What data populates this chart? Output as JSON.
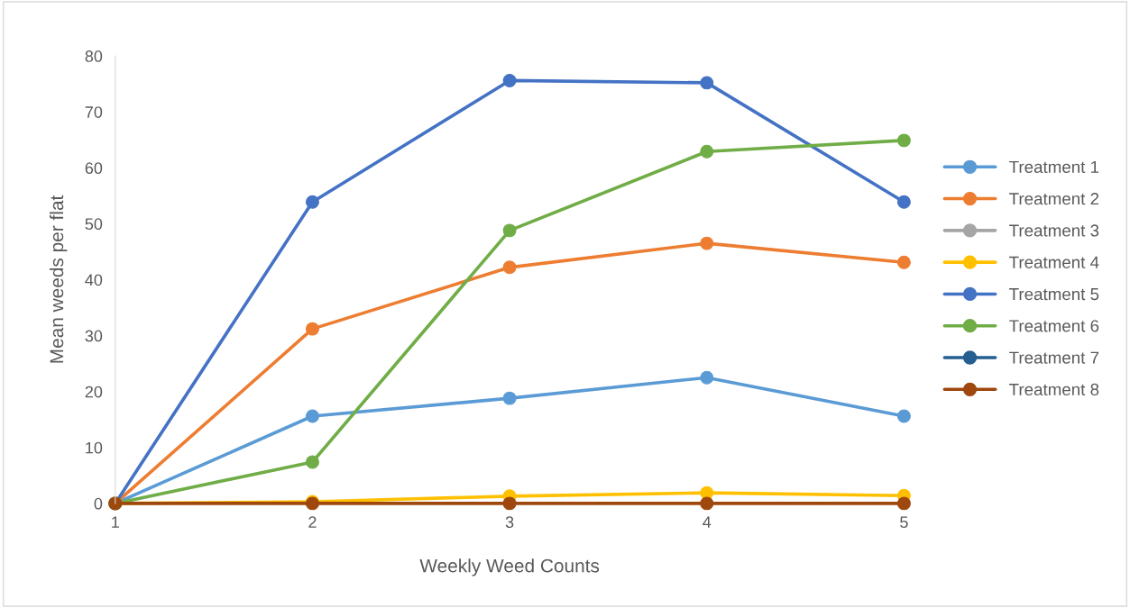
{
  "chart_data": {
    "type": "line",
    "xlabel": "Weekly Weed Counts",
    "ylabel": "Mean weeds per flat",
    "x": [
      1,
      2,
      3,
      4,
      5
    ],
    "xlim": [
      1,
      5
    ],
    "xticks": [
      1,
      2,
      3,
      4,
      5
    ],
    "ylim": [
      0,
      80
    ],
    "yticks": [
      0,
      10,
      20,
      30,
      40,
      50,
      60,
      70,
      80
    ],
    "grid": false,
    "legend": "right",
    "marker": "circle",
    "line_style": "solid",
    "series": [
      {
        "name": "Treatment 1",
        "color": "#5b9bd5",
        "values": [
          0,
          15.6,
          18.8,
          22.5,
          15.6
        ]
      },
      {
        "name": "Treatment 2",
        "color": "#ed7d31",
        "values": [
          0,
          31.2,
          42.2,
          46.5,
          43.1
        ]
      },
      {
        "name": "Treatment 3",
        "color": "#a5a5a5",
        "values": [
          null,
          null,
          null,
          null,
          null
        ]
      },
      {
        "name": "Treatment 4",
        "color": "#ffc000",
        "values": [
          0,
          0.3,
          1.3,
          1.9,
          1.4
        ]
      },
      {
        "name": "Treatment 5",
        "color": "#4472c4",
        "values": [
          0,
          53.9,
          75.6,
          75.2,
          53.9
        ]
      },
      {
        "name": "Treatment 6",
        "color": "#70ad47",
        "values": [
          0,
          7.4,
          48.8,
          62.9,
          64.9
        ]
      },
      {
        "name": "Treatment 7",
        "color": "#255e91",
        "values": [
          null,
          null,
          null,
          null,
          null
        ]
      },
      {
        "name": "Treatment 8",
        "color": "#9e480e",
        "values": [
          0,
          0,
          0,
          0,
          0
        ]
      }
    ]
  }
}
